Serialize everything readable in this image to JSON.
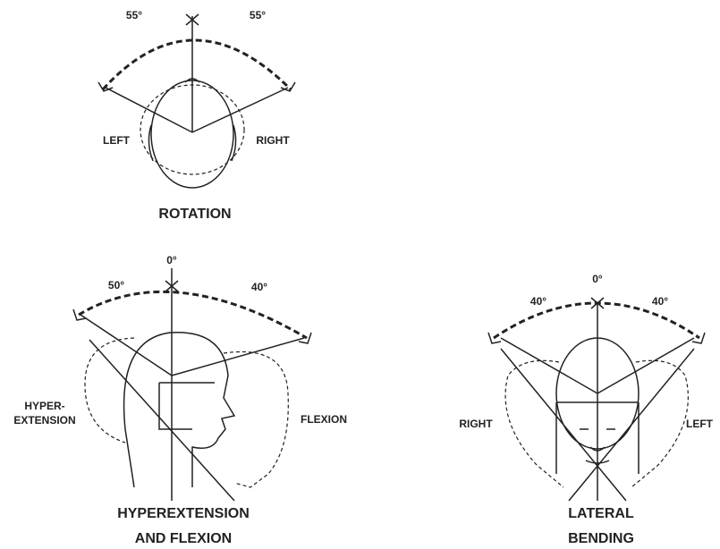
{
  "rotation": {
    "left_angle": "55°",
    "right_angle": "55°",
    "left": "LEFT",
    "right": "RIGHT",
    "title": "ROTATION"
  },
  "flexion": {
    "zero": "0°",
    "back_angle": "50°",
    "front_angle": "40°",
    "hyper_line1": "HYPER-",
    "hyper_line2": "EXTENSION",
    "flexion": "FLEXION",
    "title_line1": "HYPEREXTENSION",
    "title_line2": "AND FLEXION"
  },
  "lateral": {
    "zero": "0°",
    "left_angle": "40°",
    "right_angle": "40°",
    "right": "RIGHT",
    "left": "LEFT",
    "title_line1": "LATERAL",
    "title_line2": "BENDING"
  }
}
